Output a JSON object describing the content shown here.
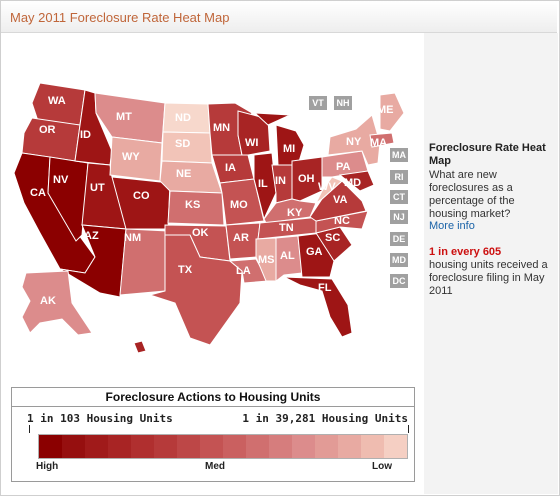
{
  "header": {
    "title": "May 2011 Foreclosure Rate Heat Map"
  },
  "side": {
    "title": "Foreclosure Rate Heat Map",
    "question": "What are new foreclosures as a percentage of the housing market?",
    "more_info": "More info",
    "stat": "1 in every 605",
    "stat_desc": "housing units received a foreclosure filing in May 2011"
  },
  "legend": {
    "title": "Foreclosure Actions to Housing Units",
    "left": "1 in 103 Housing Units",
    "right": "1 in 39,281 Housing Units",
    "high": "High",
    "med": "Med",
    "low": "Low",
    "colors": [
      "#8b0000",
      "#960f0f",
      "#a01a1a",
      "#a82424",
      "#b02f2f",
      "#b63a3a",
      "#bd4747",
      "#c45353",
      "#ca6060",
      "#d06f6f",
      "#d67d7d",
      "#dc8c8c",
      "#e29b96",
      "#e8aaa2",
      "#efbcb0",
      "#f5cfc3"
    ]
  },
  "map": {
    "colors": {
      "c1": "#8b0000",
      "c2": "#9e1515",
      "c3": "#a82424",
      "c4": "#b63a3a",
      "c5": "#c45353",
      "c6": "#d06f6f",
      "c7": "#dc8c8c",
      "c8": "#e8aaa2",
      "c9": "#f2c4b8",
      "c10": "#f7d8cc"
    },
    "states": [
      {
        "abbr": "WA",
        "shade": "c4"
      },
      {
        "abbr": "OR",
        "shade": "c4"
      },
      {
        "abbr": "CA",
        "shade": "c1"
      },
      {
        "abbr": "NV",
        "shade": "c1"
      },
      {
        "abbr": "ID",
        "shade": "c2"
      },
      {
        "abbr": "UT",
        "shade": "c2"
      },
      {
        "abbr": "AZ",
        "shade": "c1"
      },
      {
        "abbr": "MT",
        "shade": "c7"
      },
      {
        "abbr": "WY",
        "shade": "c8"
      },
      {
        "abbr": "CO",
        "shade": "c2"
      },
      {
        "abbr": "NM",
        "shade": "c6"
      },
      {
        "abbr": "ND",
        "shade": "c10"
      },
      {
        "abbr": "SD",
        "shade": "c9"
      },
      {
        "abbr": "NE",
        "shade": "c8"
      },
      {
        "abbr": "KS",
        "shade": "c6"
      },
      {
        "abbr": "OK",
        "shade": "c5"
      },
      {
        "abbr": "TX",
        "shade": "c5"
      },
      {
        "abbr": "MN",
        "shade": "c4"
      },
      {
        "abbr": "IA",
        "shade": "c4"
      },
      {
        "abbr": "MO",
        "shade": "c5"
      },
      {
        "abbr": "AR",
        "shade": "c5"
      },
      {
        "abbr": "LA",
        "shade": "c6"
      },
      {
        "abbr": "WI",
        "shade": "c3"
      },
      {
        "abbr": "IL",
        "shade": "c2"
      },
      {
        "abbr": "MI",
        "shade": "c2"
      },
      {
        "abbr": "IN",
        "shade": "c4"
      },
      {
        "abbr": "OH",
        "shade": "c3"
      },
      {
        "abbr": "KY",
        "shade": "c6"
      },
      {
        "abbr": "TN",
        "shade": "c5"
      },
      {
        "abbr": "MS",
        "shade": "c8"
      },
      {
        "abbr": "AL",
        "shade": "c7"
      },
      {
        "abbr": "GA",
        "shade": "c2"
      },
      {
        "abbr": "FL",
        "shade": "c2"
      },
      {
        "abbr": "SC",
        "shade": "c3"
      },
      {
        "abbr": "NC",
        "shade": "c5"
      },
      {
        "abbr": "VA",
        "shade": "c4"
      },
      {
        "abbr": "WV",
        "shade": "c9"
      },
      {
        "abbr": "PA",
        "shade": "c7"
      },
      {
        "abbr": "NY",
        "shade": "c8"
      },
      {
        "abbr": "MD",
        "shade": "c3"
      },
      {
        "abbr": "MA",
        "shade": "c6"
      },
      {
        "abbr": "ME",
        "shade": "c8"
      },
      {
        "abbr": "AK",
        "shade": "c7"
      },
      {
        "abbr": "HI",
        "shade": "c3"
      }
    ],
    "small_states": [
      "VT",
      "NH",
      "MA",
      "RI",
      "CT",
      "NJ",
      "DE",
      "MD",
      "DC"
    ]
  }
}
